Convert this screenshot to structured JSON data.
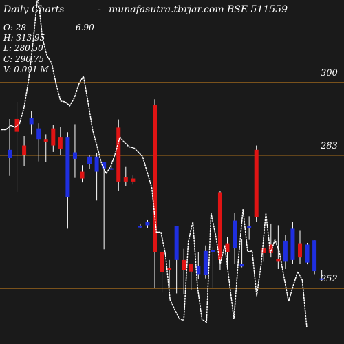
{
  "header": {
    "left": "Daily Charts",
    "dash": "-",
    "site": "munafasutra.tbrjar.com",
    "symbol": "BSE 511559"
  },
  "ohlc": {
    "open": "O: 28",
    "open_extra": "6.90",
    "high": "H: 313.95",
    "low": "L: 280.50",
    "close": "C: 290.75",
    "volume": "V: 0.001 M"
  },
  "colors": {
    "background": "#1a1a1a",
    "level_line": "#d98a1e",
    "up": "#1f2fe0",
    "down": "#e01414",
    "wick": "#ffffff",
    "ma": "#ffffff"
  },
  "chart_data": {
    "type": "candlestick",
    "title": "BSE 511559",
    "levels": [
      {
        "label": "300",
        "value": 300
      },
      {
        "label": "283",
        "value": 283
      },
      {
        "label": "252",
        "value": 252
      }
    ],
    "ylim": [
      240,
      330
    ],
    "candles": [
      {
        "o": 284.3,
        "h": 291.5,
        "l": 278.2,
        "c": 282.5,
        "color": "up"
      },
      {
        "o": 291.5,
        "h": 295.5,
        "l": 274.5,
        "c": 288.5,
        "color": "down"
      },
      {
        "o": 283,
        "h": 287.5,
        "l": 280.5,
        "c": 285.3,
        "color": "down"
      },
      {
        "o": 291.7,
        "h": 293.4,
        "l": 287.9,
        "c": 290.3,
        "color": "up"
      },
      {
        "o": 289.3,
        "h": 290.5,
        "l": 281.6,
        "c": 286.8,
        "color": "up"
      },
      {
        "o": 286.8,
        "h": 287.9,
        "l": 281.4,
        "c": 286.2,
        "color": "down"
      },
      {
        "o": 289.3,
        "h": 290.1,
        "l": 283.8,
        "c": 285.3,
        "color": "down"
      },
      {
        "o": 287.3,
        "h": 289.7,
        "l": 283.1,
        "c": 284.6,
        "color": "down"
      },
      {
        "o": 287.3,
        "h": 288.4,
        "l": 265.9,
        "c": 273.3,
        "color": "up"
      },
      {
        "o": 282.2,
        "h": 290.3,
        "l": 277.9,
        "c": 283.7,
        "color": "up"
      },
      {
        "o": 279.2,
        "h": 280.7,
        "l": 276.7,
        "c": 277.6,
        "color": "down"
      },
      {
        "o": 282.7,
        "h": 283.1,
        "l": 279.8,
        "c": 281.0,
        "color": "up"
      },
      {
        "o": 282.7,
        "h": 283.5,
        "l": 272.5,
        "c": 279.2,
        "color": "up"
      },
      {
        "o": 281.4,
        "h": 281.4,
        "l": 261.1,
        "c": 280.0,
        "color": "up"
      },
      {
        "o": 280.0,
        "h": 280.7,
        "l": 279.8,
        "c": 280.0,
        "color": "up"
      },
      {
        "o": 289.5,
        "h": 291.4,
        "l": 274.8,
        "c": 276.9,
        "color": "down"
      },
      {
        "o": 278.0,
        "h": 280.3,
        "l": 275.8,
        "c": 276.9,
        "color": "down"
      },
      {
        "o": 277.6,
        "h": 278.3,
        "l": 276.2,
        "c": 276.9,
        "color": "down"
      },
      {
        "o": 266.3,
        "h": 267.1,
        "l": 266.1,
        "c": 266.5,
        "color": "up"
      },
      {
        "o": 267.5,
        "h": 267.9,
        "l": 266.1,
        "c": 266.7,
        "color": "up"
      },
      {
        "o": 294.8,
        "h": 296.1,
        "l": 252.0,
        "c": 260.5,
        "color": "down"
      },
      {
        "o": 260.5,
        "h": 260.5,
        "l": 251.0,
        "c": 255.7,
        "color": "down"
      },
      {
        "o": 256.7,
        "h": 258.6,
        "l": 252.2,
        "c": 256.3,
        "color": "down"
      },
      {
        "o": 258.6,
        "h": 266.3,
        "l": 250.8,
        "c": 266.5,
        "color": "up"
      },
      {
        "o": 258.6,
        "h": 261.2,
        "l": 250.7,
        "c": 256.3,
        "color": "down"
      },
      {
        "o": 255.9,
        "h": 257.7,
        "l": 251.6,
        "c": 257.7,
        "color": "down"
      },
      {
        "o": 257.3,
        "h": 260.5,
        "l": 254.1,
        "c": 255.3,
        "color": "up"
      },
      {
        "o": 260.7,
        "h": 262.0,
        "l": 254.3,
        "c": 255.2,
        "color": "up"
      },
      {
        "o": 260.9,
        "h": 261.6,
        "l": 252.2,
        "c": 260.5,
        "color": "up"
      },
      {
        "o": 274.4,
        "h": 274.7,
        "l": 256.3,
        "c": 258.6,
        "color": "down"
      },
      {
        "o": 262.5,
        "h": 264.0,
        "l": 256.5,
        "c": 260.5,
        "color": "down"
      },
      {
        "o": 267.8,
        "h": 269.5,
        "l": 257.7,
        "c": 261.3,
        "color": "up"
      },
      {
        "o": 257.7,
        "h": 263.4,
        "l": 256.9,
        "c": 257.1,
        "color": "up"
      },
      {
        "o": 266.5,
        "h": 268.8,
        "l": 263.3,
        "c": 266.1,
        "color": "up"
      },
      {
        "o": 284.3,
        "h": 285.3,
        "l": 267.5,
        "c": 268.6,
        "color": "down"
      },
      {
        "o": 261.3,
        "h": 263.4,
        "l": 258.2,
        "c": 260.2,
        "color": "down"
      },
      {
        "o": 262.2,
        "h": 267.1,
        "l": 259.2,
        "c": 260.2,
        "color": "down"
      },
      {
        "o": 258.8,
        "h": 266.7,
        "l": 256.5,
        "c": 258.2,
        "color": "down"
      },
      {
        "o": 263.1,
        "h": 264.5,
        "l": 256.5,
        "c": 258.2,
        "color": "up"
      },
      {
        "o": 265.9,
        "h": 267.5,
        "l": 257.7,
        "c": 258.6,
        "color": "up"
      },
      {
        "o": 262.5,
        "h": 265.4,
        "l": 257.7,
        "c": 259.2,
        "color": "down"
      },
      {
        "o": 262.2,
        "h": 262.6,
        "l": 257.6,
        "c": 258.0,
        "color": "up"
      },
      {
        "o": 263.2,
        "h": 263.2,
        "l": 255.3,
        "c": 256.0,
        "color": "up"
      },
      {
        "o": 254.3,
        "h": 256.3,
        "l": 253.9,
        "c": 254.1,
        "color": "up"
      }
    ],
    "ma": [
      289,
      289,
      290,
      289.6,
      290.5,
      294.3,
      300.8,
      310,
      320.5,
      310.4,
      306.2,
      304.6,
      299.7,
      295.7,
      295.5,
      294.6,
      296.4,
      299.7,
      301.5,
      295.5,
      289,
      285,
      281,
      278.8,
      280.5,
      283.5,
      287.3,
      286,
      285,
      284.8,
      283.8,
      282.7,
      279,
      275.4,
      265.1,
      265.1,
      259.8,
      249.3,
      247.1,
      244.9,
      244.5,
      262.9,
      267.5,
      252.4,
      244.7,
      244.1,
      269.5,
      264.3,
      257.7,
      262,
      253.5,
      244.8,
      258.9,
      270.4,
      260.5,
      260.7,
      250.2,
      257.7,
      269.5,
      260.2,
      263.3,
      260.4,
      254.5,
      248.9,
      252.6,
      255.9,
      253.9,
      242.7
    ]
  }
}
